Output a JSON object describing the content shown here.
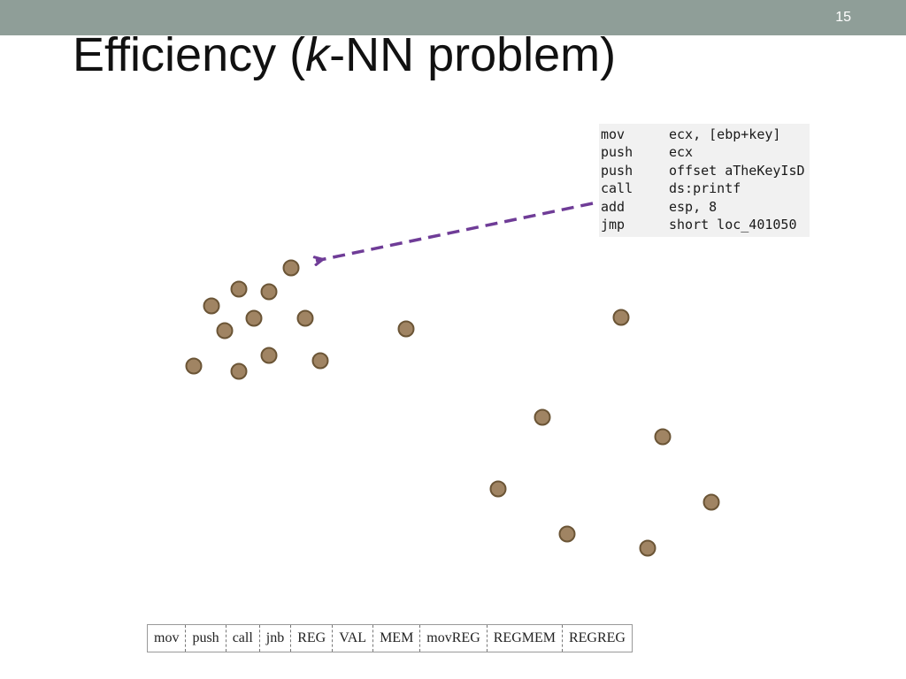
{
  "slide_number": "15",
  "title": {
    "prefix": "Efficiency (",
    "italic": "k",
    "suffix": "-NN problem)"
  },
  "code_snippet": [
    {
      "op": "mov",
      "args": "ecx, [ebp+key]"
    },
    {
      "op": "push",
      "args": "ecx"
    },
    {
      "op": "push",
      "args": "offset aTheKeyIsD"
    },
    {
      "op": "call",
      "args": "ds:printf"
    },
    {
      "op": "add",
      "args": "esp, 8"
    },
    {
      "op": "jmp",
      "args": "short loc_401050"
    }
  ],
  "feature_vector": [
    "mov",
    "push",
    "call",
    "jnb",
    "REG",
    "VAL",
    "MEM",
    "movREG",
    "REGMEM",
    "REGREG"
  ],
  "colors": {
    "point_fill": "#a08463",
    "point_stroke": "#6b5536",
    "arrow": "#6f3c97",
    "header_bar": "#8f9e98"
  }
}
